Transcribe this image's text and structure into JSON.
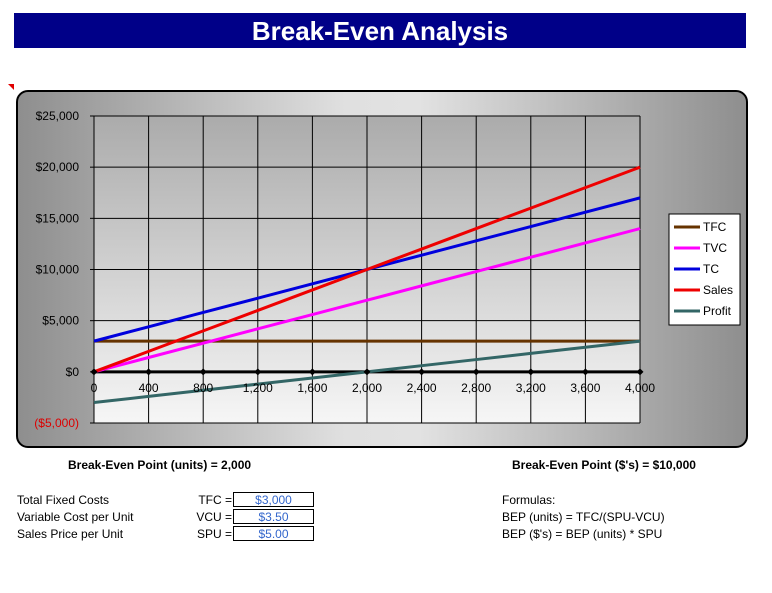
{
  "title": "Break-Even Analysis",
  "bep": {
    "units_label": "Break-Even Point (units) = 2,000",
    "dollars_label": "Break-Even Point ($'s) = $10,000"
  },
  "inputs": [
    {
      "label": "Total Fixed Costs",
      "code": "TFC =",
      "value": "$3,000"
    },
    {
      "label": "Variable Cost per Unit",
      "code": "VCU =",
      "value": "$3.50"
    },
    {
      "label": "Sales Price per Unit",
      "code": "SPU =",
      "value": "$5.00"
    }
  ],
  "formulas": {
    "heading": "Formulas:",
    "line1": "BEP (units) = TFC/(SPU-VCU)",
    "line2": "BEP ($'s) = BEP (units) * SPU"
  },
  "chart_data": {
    "type": "line",
    "x": [
      0,
      400,
      800,
      1200,
      1600,
      2000,
      2400,
      2800,
      3200,
      3600,
      4000
    ],
    "x_tick_labels": [
      "0",
      "400",
      "800",
      "1,200",
      "1,600",
      "2,000",
      "2,400",
      "2,800",
      "3,200",
      "3,600",
      "4,000"
    ],
    "y_tick_values": [
      25000,
      20000,
      15000,
      10000,
      5000,
      0,
      -5000
    ],
    "y_tick_labels": [
      "$25,000",
      "$20,000",
      "$15,000",
      "$10,000",
      "$5,000",
      "$0",
      "($5,000)"
    ],
    "xlim": [
      0,
      4000
    ],
    "ylim": [
      -5000,
      25000
    ],
    "grid": true,
    "legend_position": "right",
    "negative_tick_color": "#dd0000",
    "series": [
      {
        "name": "TFC",
        "color": "#663300",
        "values": [
          3000,
          3000,
          3000,
          3000,
          3000,
          3000,
          3000,
          3000,
          3000,
          3000,
          3000
        ]
      },
      {
        "name": "TVC",
        "color": "#ff00ff",
        "values": [
          0,
          1400,
          2800,
          4200,
          5600,
          7000,
          8400,
          9800,
          11200,
          12600,
          14000
        ]
      },
      {
        "name": "TC",
        "color": "#0000dd",
        "values": [
          3000,
          4400,
          5800,
          7200,
          8600,
          10000,
          11400,
          12800,
          14200,
          15600,
          17000
        ]
      },
      {
        "name": "Sales",
        "color": "#ee0000",
        "values": [
          0,
          2000,
          4000,
          6000,
          8000,
          10000,
          12000,
          14000,
          16000,
          18000,
          20000
        ]
      },
      {
        "name": "Profit",
        "color": "#336666",
        "values": [
          -3000,
          -2400,
          -1800,
          -1200,
          -600,
          0,
          600,
          1200,
          1800,
          2400,
          3000
        ]
      }
    ]
  }
}
